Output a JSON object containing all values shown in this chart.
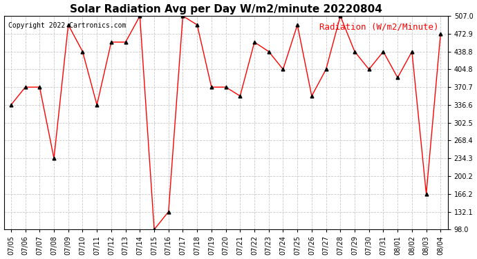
{
  "title": "Solar Radiation Avg per Day W/m2/minute 20220804",
  "copyright": "Copyright 2022 Cartronics.com",
  "legend_label": "Radiation (W/m2/Minute)",
  "dates": [
    "07/05",
    "07/06",
    "07/07",
    "07/08",
    "07/09",
    "07/10",
    "07/11",
    "07/12",
    "07/13",
    "07/14",
    "07/15",
    "07/16",
    "07/17",
    "07/18",
    "07/19",
    "07/20",
    "07/21",
    "07/22",
    "07/23",
    "07/24",
    "07/25",
    "07/26",
    "07/27",
    "07/28",
    "07/29",
    "07/30",
    "07/31",
    "08/01",
    "08/02",
    "08/03",
    "08/04"
  ],
  "values": [
    336.6,
    370.7,
    370.7,
    234.3,
    490.0,
    438.8,
    336.6,
    456.9,
    456.9,
    507.0,
    98.0,
    132.1,
    507.0,
    490.0,
    370.7,
    370.7,
    353.7,
    456.9,
    438.8,
    404.8,
    490.0,
    353.7,
    404.8,
    507.0,
    438.8,
    404.8,
    438.8,
    388.8,
    438.8,
    166.2,
    472.9
  ],
  "ylim": [
    98.0,
    507.0
  ],
  "yticks": [
    98.0,
    132.1,
    166.2,
    200.2,
    234.3,
    268.4,
    302.5,
    336.6,
    370.7,
    404.8,
    438.8,
    472.9,
    507.0
  ],
  "line_color": "red",
  "marker_color": "black",
  "marker": "^",
  "background_color": "#ffffff",
  "grid_color": "#c8c8c8",
  "title_fontsize": 11,
  "copyright_fontsize": 7,
  "legend_fontsize": 9,
  "tick_fontsize": 7
}
